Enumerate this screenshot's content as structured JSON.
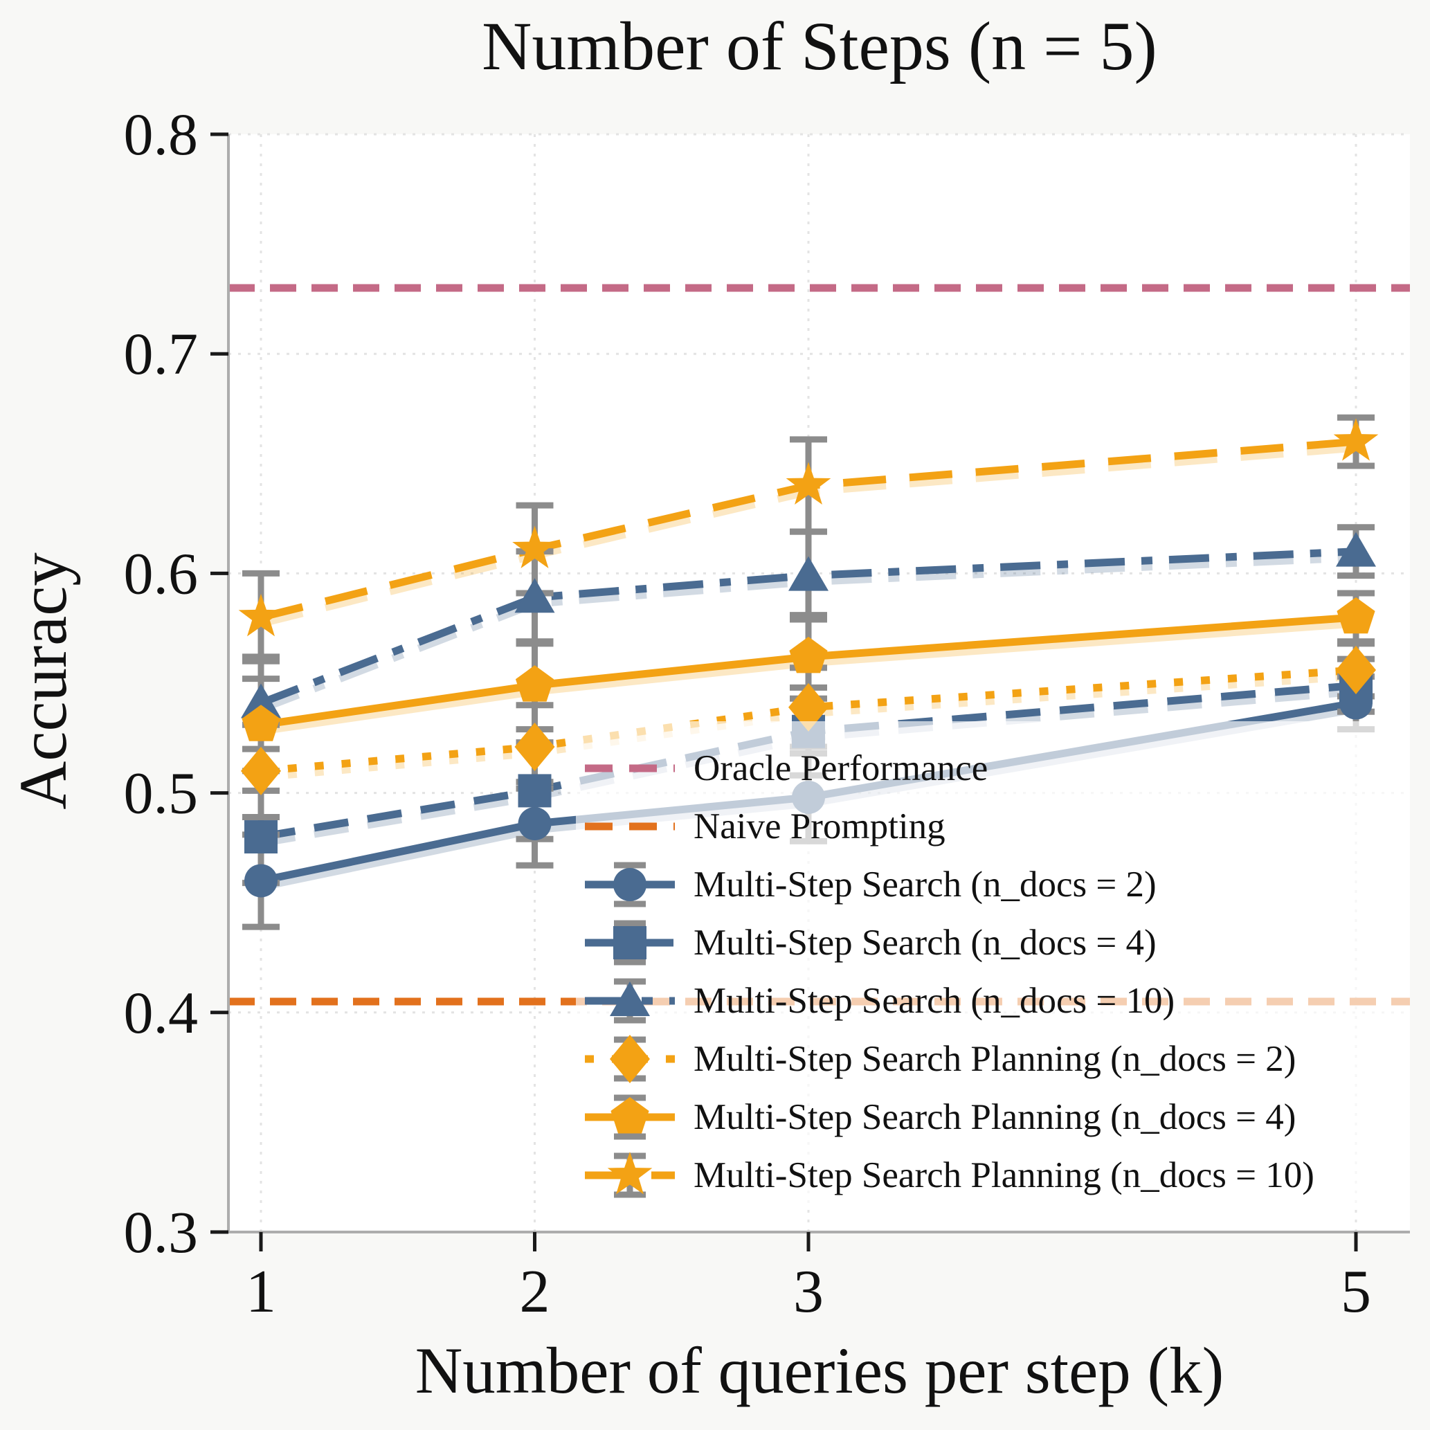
{
  "title": "Number of Steps (n = 5)",
  "colors": {
    "background": "#f8f8f6",
    "plot_background": "#ffffff",
    "grid": "#e3e3e3",
    "spine": "#adadad",
    "tick": "#1a1a1a",
    "error_bar": "#8c8c8c",
    "blue_series": "#4a6b91",
    "orange_series": "#f3a214",
    "oracle_line": "#c46a86",
    "naive_line": "#e2711d",
    "legend_box": "rgba(255,255,255,0.66)"
  },
  "chart_data": {
    "type": "line",
    "title": "Number of Steps (n = 5)",
    "xlabel": "Number of queries per step (k)",
    "ylabel": "Accuracy",
    "x": [
      1,
      2,
      3,
      5
    ],
    "xtick_labels": [
      "1",
      "2",
      "3",
      "5"
    ],
    "yticks": [
      0.3,
      0.4,
      0.5,
      0.6,
      0.7,
      0.8
    ],
    "ytick_labels": [
      "0.3",
      "0.4",
      "0.5",
      "0.6",
      "0.7",
      "0.8"
    ],
    "ylim": [
      0.3,
      0.8
    ],
    "grid": true,
    "legend_position": "center-right-inside",
    "reference_lines": [
      {
        "name": "Oracle Performance",
        "value": 0.73,
        "color": "#c46a86",
        "line": "refdash"
      },
      {
        "name": "Naive Prompting",
        "value": 0.405,
        "color": "#e2711d",
        "line": "refdash"
      }
    ],
    "series": [
      {
        "name": "Multi-Step Search (n_docs = 2)",
        "color": "#4a6b91",
        "line": "solid",
        "marker": "circle",
        "values": [
          0.46,
          0.486,
          0.498,
          0.541
        ],
        "errors": [
          0.021,
          0.019,
          0.02,
          0.012
        ]
      },
      {
        "name": "Multi-Step Search (n_docs = 4)",
        "color": "#4a6b91",
        "line": "dashed",
        "marker": "square",
        "values": [
          0.48,
          0.501,
          0.528,
          0.549
        ],
        "errors": [
          0.021,
          0.022,
          0.02,
          0.012
        ]
      },
      {
        "name": "Multi-Step Search (n_docs = 10)",
        "color": "#4a6b91",
        "line": "dashdot",
        "marker": "triangle",
        "values": [
          0.541,
          0.589,
          0.599,
          0.61
        ],
        "errors": [
          0.021,
          0.021,
          0.02,
          0.011
        ]
      },
      {
        "name": "Multi-Step Search Planning (n_docs = 2)",
        "color": "#f3a214",
        "line": "dotted",
        "marker": "diamond",
        "values": [
          0.51,
          0.521,
          0.539,
          0.556
        ],
        "errors": [
          0.021,
          0.019,
          0.018,
          0.012
        ]
      },
      {
        "name": "Multi-Step Search Planning (n_docs = 4)",
        "color": "#f3a214",
        "line": "solid",
        "marker": "pentagon",
        "values": [
          0.531,
          0.549,
          0.562,
          0.58
        ],
        "errors": [
          0.021,
          0.02,
          0.019,
          0.011
        ]
      },
      {
        "name": "Multi-Step Search Planning (n_docs = 10)",
        "color": "#f3a214",
        "line": "wdashed",
        "marker": "star",
        "values": [
          0.58,
          0.611,
          0.64,
          0.66
        ],
        "errors": [
          0.02,
          0.02,
          0.021,
          0.011
        ]
      }
    ]
  },
  "legend": {
    "entries": [
      "Oracle Performance",
      "Naive Prompting",
      "Multi-Step Search (n_docs = 2)",
      "Multi-Step Search (n_docs = 4)",
      "Multi-Step Search (n_docs = 10)",
      "Multi-Step Search Planning (n_docs = 2)",
      "Multi-Step Search Planning (n_docs = 4)",
      "Multi-Step Search Planning (n_docs = 10)"
    ]
  }
}
